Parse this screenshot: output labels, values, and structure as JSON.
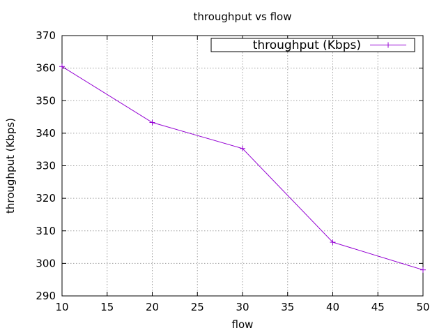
{
  "chart_data": {
    "type": "line",
    "title": "throughput vs flow",
    "xlabel": "flow",
    "ylabel": "throughput (Kbps)",
    "xlim": [
      10,
      50
    ],
    "ylim": [
      290,
      370
    ],
    "xticks": [
      10,
      15,
      20,
      25,
      30,
      35,
      40,
      45,
      50
    ],
    "yticks": [
      290,
      300,
      310,
      320,
      330,
      340,
      350,
      360,
      370
    ],
    "grid": true,
    "legend_position": "top-right",
    "series": [
      {
        "name": "throughput (Kbps)",
        "color": "#9400d3",
        "marker": "plus",
        "x": [
          10,
          20,
          30,
          40,
          50
        ],
        "y": [
          360.5,
          343.3,
          335.3,
          306.5,
          298.0
        ]
      }
    ]
  }
}
